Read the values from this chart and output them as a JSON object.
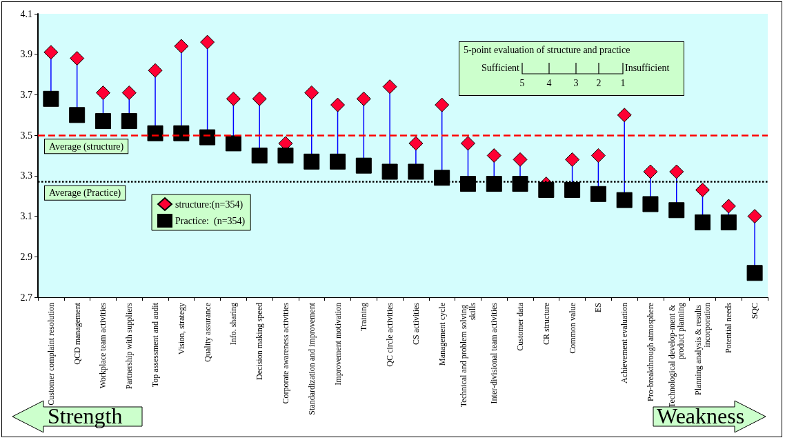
{
  "chart_data": {
    "type": "scatter",
    "categories": [
      "Customer complaint resolution",
      "QCD management",
      "Workplace team activities",
      "Partnership with suppliers",
      "Top assessment and audit",
      "Vision, strategy",
      "Quality assurance",
      "Info. sharing",
      "Decision making speed",
      "Corporate awareness activities",
      "Standardization and improvement",
      "Improvement motivation",
      "Training",
      "QC circle activities",
      "CS activities",
      "Management cycle",
      "Technical and problem solving skills",
      "Inter-divisional team activities",
      "Customer data",
      "CR structure",
      "Common value",
      "ES",
      "Achievement evaluation",
      "Pro-breakthrough atmosphere",
      "Technological develop-ment & product planning",
      "Planning analysis & results incorporation",
      "Potential needs",
      "SQC"
    ],
    "series": [
      {
        "name": "structure:(n=354)",
        "color": "#ff0033",
        "marker": "diamond",
        "values": [
          3.91,
          3.88,
          3.71,
          3.71,
          3.82,
          3.94,
          3.96,
          3.68,
          3.68,
          3.46,
          3.71,
          3.65,
          3.68,
          3.74,
          3.46,
          3.65,
          3.46,
          3.4,
          3.38,
          3.26,
          3.38,
          3.4,
          3.6,
          3.32,
          3.32,
          3.23,
          3.15,
          3.1
        ]
      },
      {
        "name": "Practice:  (n=354)",
        "color": "#000000",
        "marker": "square",
        "values": [
          3.68,
          3.6,
          3.57,
          3.57,
          3.51,
          3.51,
          3.49,
          3.46,
          3.4,
          3.4,
          3.37,
          3.37,
          3.35,
          3.32,
          3.32,
          3.29,
          3.26,
          3.26,
          3.26,
          3.23,
          3.23,
          3.21,
          3.18,
          3.16,
          3.13,
          3.07,
          3.07,
          2.82
        ]
      }
    ],
    "ylim": [
      2.7,
      4.1
    ],
    "yticks": [
      2.7,
      2.9,
      3.1,
      3.3,
      3.5,
      3.7,
      3.9,
      4.1
    ],
    "legend": "left",
    "ref_lines": [
      {
        "axis": "y",
        "value": 3.5,
        "label": "Average (structure)",
        "color": "#ff0000",
        "line_style": "dashed"
      },
      {
        "axis": "y",
        "value": 3.27,
        "label": "Average (Practice)",
        "color": "#000000",
        "line_style": "dotted"
      }
    ],
    "annotations": [
      "5-point evaluation of structure and practice",
      "Sufficient",
      "Insufficient",
      "5",
      "4",
      "3",
      "2",
      "1",
      "Strength",
      "Weakness"
    ]
  }
}
